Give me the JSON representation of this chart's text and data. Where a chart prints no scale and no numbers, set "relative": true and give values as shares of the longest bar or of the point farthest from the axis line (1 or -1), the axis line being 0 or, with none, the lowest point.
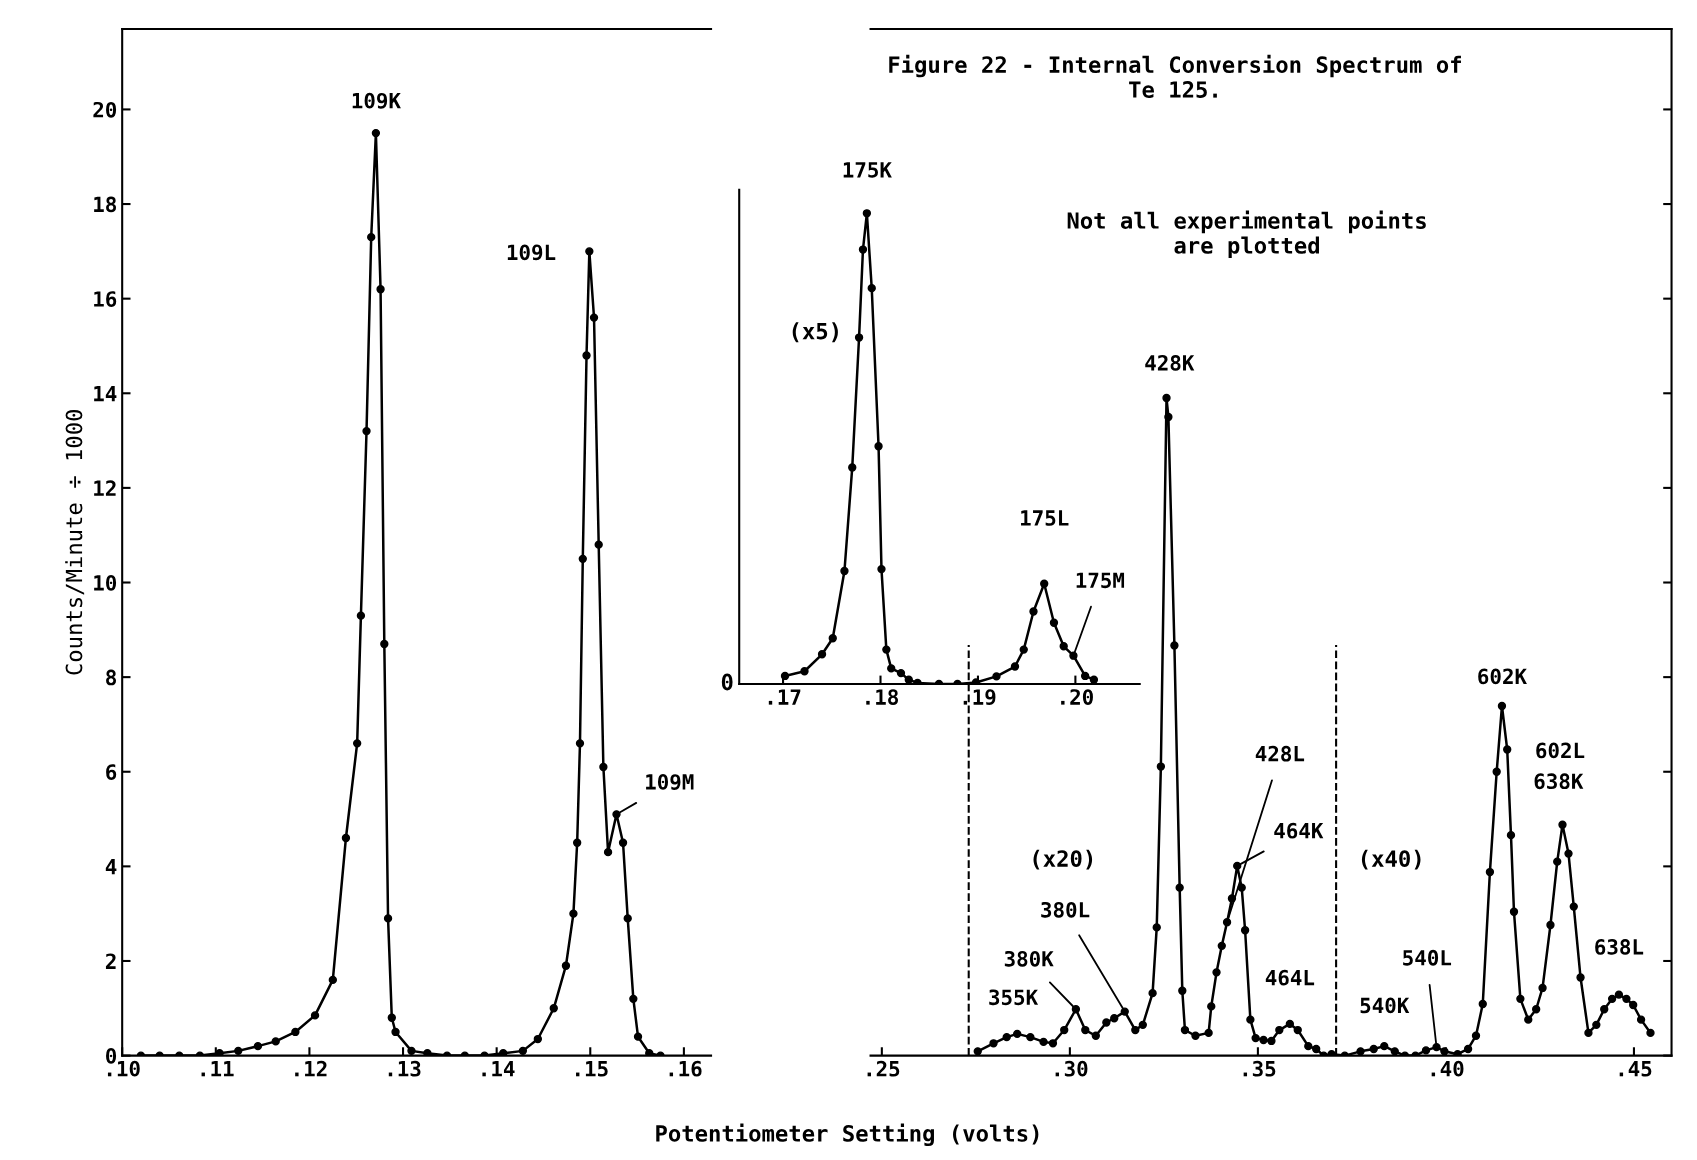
{
  "chart_data": [
    {
      "type": "line",
      "ylabel": "Counts/Minute ÷ 1000",
      "xlim": [
        0.1,
        0.1629
      ],
      "ylim": [
        0,
        21.7
      ],
      "xticks": [
        {
          "value": 0.1,
          "label": ".10"
        },
        {
          "value": 0.11,
          "label": ".11"
        },
        {
          "value": 0.12,
          "label": ".12"
        },
        {
          "value": 0.13,
          "label": ".13"
        },
        {
          "value": 0.14,
          "label": ".14"
        },
        {
          "value": 0.15,
          "label": ".15"
        },
        {
          "value": 0.16,
          "label": ".16"
        }
      ],
      "yticks": [
        0,
        2,
        4,
        6,
        8,
        10,
        12,
        14,
        16,
        18,
        20
      ],
      "marker": "circle",
      "line_style": "solid",
      "series": [
        {
          "color": "#000000",
          "x": [
            0.102,
            0.104,
            0.1061,
            0.1083,
            0.1104,
            0.1124,
            0.1145,
            0.1164,
            0.1185,
            0.1206,
            0.1225,
            0.1239,
            0.1251,
            0.1255,
            0.1261,
            0.1266,
            0.1271,
            0.1276,
            0.128,
            0.1284,
            0.1288,
            0.1292,
            0.1309,
            0.1326,
            0.1347,
            0.1366,
            0.1387,
            0.1407,
            0.1428,
            0.1444,
            0.1461,
            0.1474,
            0.1482,
            0.1486,
            0.1489,
            0.1492,
            0.1496,
            0.1499,
            0.1504,
            0.1509,
            0.1514,
            0.1519,
            0.1528,
            0.1535,
            0.154,
            0.1546,
            0.1551,
            0.1563,
            0.1575
          ],
          "values": [
            0,
            0,
            0,
            0,
            0.05,
            0.1,
            0.2,
            0.3,
            0.5,
            0.85,
            1.6,
            4.6,
            6.6,
            9.3,
            13.2,
            17.3,
            19.5,
            16.2,
            8.7,
            2.9,
            0.8,
            0.5,
            0.1,
            0.05,
            0,
            0,
            0,
            0.05,
            0.1,
            0.35,
            1.0,
            1.9,
            3.0,
            4.5,
            6.6,
            10.5,
            14.8,
            17.0,
            15.6,
            10.8,
            6.1,
            4.3,
            5.1,
            4.5,
            2.9,
            1.2,
            0.4,
            0.05,
            0
          ]
        }
      ],
      "annotations": [
        {
          "text": "109K",
          "x": 0.1271,
          "y": 19.5
        },
        {
          "text": "109L",
          "x": 0.1499,
          "y": 17.0
        },
        {
          "text": "109M",
          "x": 0.1528,
          "y": 5.1
        }
      ]
    },
    {
      "type": "line",
      "title": "Figure 22 - Internal Conversion Spectrum of\nTe 125.",
      "xlabel": "Potentiometer Setting (volts)",
      "xlim": [
        0.247,
        0.46
      ],
      "ylim": [
        0,
        21.7
      ],
      "xticks": [
        {
          "value": 0.25,
          "label": ".25"
        },
        {
          "value": 0.3,
          "label": ".30"
        },
        {
          "value": 0.35,
          "label": ".35"
        },
        {
          "value": 0.4,
          "label": ".40"
        },
        {
          "value": 0.45,
          "label": ".45"
        }
      ],
      "yticks": [
        0,
        2,
        4,
        6,
        8,
        10,
        12,
        14,
        16,
        18,
        20
      ],
      "tick_labels": "x",
      "marker": "circle",
      "line_style": "solid",
      "series": [
        {
          "color": "#000000",
          "x": [
            0.2755,
            0.2797,
            0.2832,
            0.286,
            0.2895,
            0.293,
            0.2955,
            0.2985,
            0.3016,
            0.3041,
            0.3069,
            0.3097,
            0.3118,
            0.3146,
            0.3174,
            0.3194,
            0.322,
            0.3231,
            0.3242,
            0.3257,
            0.3262,
            0.3278,
            0.3292,
            0.3299,
            0.3306,
            0.3334,
            0.3369,
            0.3376,
            0.339,
            0.3404,
            0.3418,
            0.3431,
            0.3445,
            0.3457,
            0.3466,
            0.348,
            0.3494,
            0.3515,
            0.3536,
            0.3557,
            0.3585,
            0.3606,
            0.3634,
            0.3655,
            0.3675,
            0.3696,
            0.3731,
            0.3773,
            0.3808,
            0.3836,
            0.3864,
            0.3891,
            0.3919,
            0.3947,
            0.3975,
            0.3996,
            0.4031,
            0.4059,
            0.408,
            0.4098,
            0.4117,
            0.4135,
            0.4149,
            0.4163,
            0.4173,
            0.4181,
            0.4198,
            0.4219,
            0.424,
            0.4257,
            0.4278,
            0.4296,
            0.431,
            0.4326,
            0.434,
            0.4358,
            0.4379,
            0.44,
            0.4421,
            0.4442,
            0.446,
            0.448,
            0.4498,
            0.4519,
            0.4544
          ],
          "values": [
            0.09,
            0.26,
            0.39,
            0.46,
            0.39,
            0.29,
            0.26,
            0.54,
            0.98,
            0.54,
            0.42,
            0.7,
            0.79,
            0.93,
            0.54,
            0.65,
            1.32,
            2.71,
            6.11,
            13.9,
            13.5,
            8.67,
            3.55,
            1.37,
            0.54,
            0.42,
            0.48,
            1.04,
            1.76,
            2.32,
            2.82,
            3.32,
            4.01,
            3.55,
            2.65,
            0.76,
            0.37,
            0.33,
            0.31,
            0.54,
            0.67,
            0.54,
            0.2,
            0.14,
            0,
            0.03,
            0,
            0.09,
            0.14,
            0.2,
            0.09,
            0,
            0,
            0.11,
            0.18,
            0.09,
            0.03,
            0.14,
            0.42,
            1.09,
            3.88,
            6.0,
            7.39,
            6.47,
            4.66,
            3.04,
            1.2,
            0.76,
            0.98,
            1.43,
            2.76,
            4.1,
            4.88,
            4.27,
            3.15,
            1.65,
            0.48,
            0.65,
            0.98,
            1.2,
            1.29,
            1.2,
            1.07,
            0.76,
            0.48
          ]
        }
      ],
      "ref_lines": [
        {
          "axis": "x",
          "value": 0.2731,
          "color": "#000000",
          "line_style": "dashed"
        },
        {
          "axis": "x",
          "value": 0.3708,
          "color": "#000000",
          "line_style": "dashed"
        }
      ],
      "annotations": [
        "Not all experimental points\nare plotted",
        "(x20)",
        "(x40)",
        {
          "text": "428K",
          "x": 0.3257,
          "y": 13.9
        },
        {
          "text": "428L",
          "x": 0.3418,
          "y": 2.82
        },
        {
          "text": "464K",
          "x": 0.3445,
          "y": 4.01
        },
        {
          "text": "380L",
          "x": 0.3146,
          "y": 0.93
        },
        {
          "text": "380K",
          "x": 0.3016,
          "y": 0.98
        },
        {
          "text": "355K",
          "x": 0.286,
          "y": 0.46
        },
        {
          "text": "464L",
          "x": 0.3585,
          "y": 0.67
        },
        {
          "text": "540L",
          "x": 0.3975,
          "y": 0.18
        },
        {
          "text": "540K",
          "x": 0.3836,
          "y": 0.2
        },
        {
          "text": "602K",
          "x": 0.4149,
          "y": 7.39
        },
        {
          "text": "602L",
          "x": 0.4163,
          "y": 6.47
        },
        {
          "text": "638K",
          "x": 0.431,
          "y": 4.88
        },
        {
          "text": "638L",
          "x": 0.446,
          "y": 1.29
        }
      ]
    },
    {
      "type": "line",
      "relative": true,
      "xlim": [
        0.1655,
        0.2066
      ],
      "xticks": [
        {
          "value": 0.17,
          "label": ".17"
        },
        {
          "value": 0.18,
          "label": ".18"
        },
        {
          "value": 0.19,
          "label": ".19"
        },
        {
          "value": 0.2,
          "label": ".20"
        }
      ],
      "marker": "circle",
      "line_style": "solid",
      "series": [
        {
          "color": "#000000",
          "x": [
            0.1702,
            0.1722,
            0.174,
            0.1751,
            0.1763,
            0.1771,
            0.1778,
            0.1782,
            0.1786,
            0.1791,
            0.1798,
            0.1801,
            0.1806,
            0.1811,
            0.1821,
            0.1829,
            0.1838,
            0.186,
            0.1879,
            0.1898,
            0.1919,
            0.1938,
            0.1947,
            0.1957,
            0.1968,
            0.1978,
            0.1988,
            0.1998,
            0.201,
            0.2019
          ],
          "values": [
            0.017,
            0.027,
            0.063,
            0.097,
            0.24,
            0.46,
            0.736,
            0.923,
            1.0,
            0.841,
            0.505,
            0.244,
            0.073,
            0.033,
            0.023,
            0.009,
            0.002,
            0,
            0,
            0.003,
            0.016,
            0.037,
            0.073,
            0.154,
            0.213,
            0.13,
            0.08,
            0.06,
            0.017,
            0.009
          ]
        }
      ],
      "annotations": [
        "(x5)",
        "0",
        {
          "text": "175K",
          "x": 0.1786,
          "y": 1.0
        },
        {
          "text": "175L",
          "x": 0.1968,
          "y": 0.213
        },
        {
          "text": "175M",
          "x": 0.1998,
          "y": 0.06
        }
      ]
    }
  ]
}
